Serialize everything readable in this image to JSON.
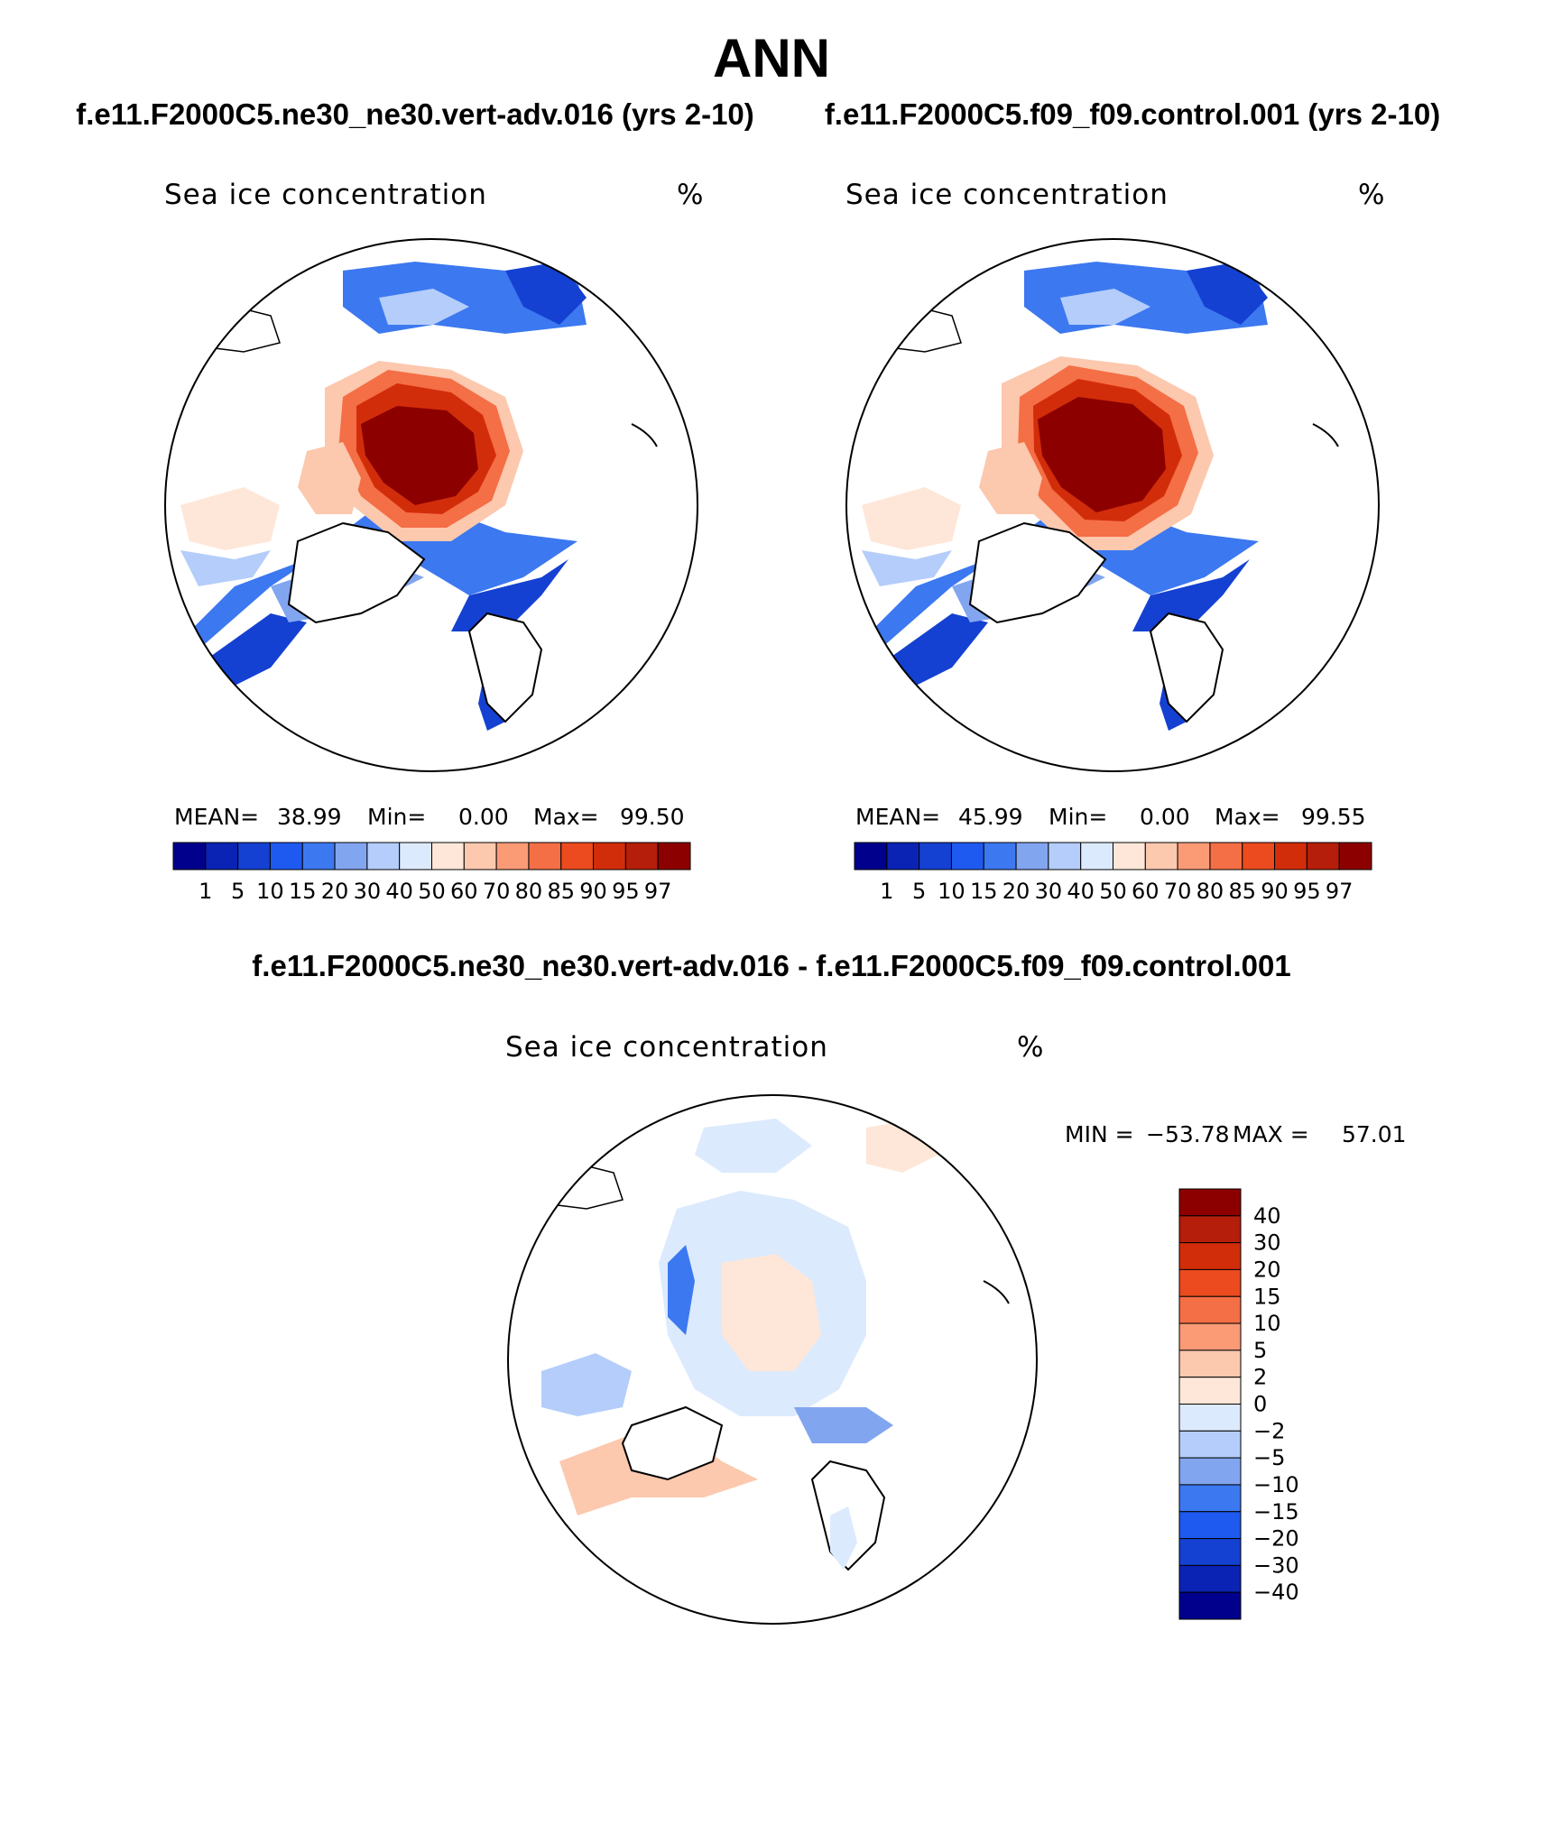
{
  "title": "ANN",
  "chart_data": [
    {
      "type": "heatmap",
      "projection": "north-polar-stereographic",
      "case_title": "f.e11.F2000C5.ne30_ne30.vert-adv.016 (yrs 2-10)",
      "variable": "Sea ice concentration",
      "units": "%",
      "stats": {
        "mean_label": "MEAN=",
        "mean": "38.99",
        "min_label": "Min=",
        "min": "0.00",
        "max_label": "Max=",
        "max": "99.50"
      },
      "levels": [
        "1",
        "5",
        "10",
        "15",
        "20",
        "30",
        "40",
        "50",
        "60",
        "70",
        "80",
        "85",
        "90",
        "95",
        "97"
      ],
      "colors": [
        "#00008c",
        "#0a23b4",
        "#1441d2",
        "#1e5af0",
        "#3c78f0",
        "#82a5f0",
        "#b4cdfa",
        "#dceafe",
        "#fee7d8",
        "#fcc8ae",
        "#fa9b76",
        "#f46e46",
        "#eb4b1e",
        "#d22d0a",
        "#b41e0a",
        "#8c0000"
      ]
    },
    {
      "type": "heatmap",
      "projection": "north-polar-stereographic",
      "case_title": "f.e11.F2000C5.f09_f09.control.001 (yrs 2-10)",
      "variable": "Sea ice concentration",
      "units": "%",
      "stats": {
        "mean_label": "MEAN=",
        "mean": "45.99",
        "min_label": "Min=",
        "min": "0.00",
        "max_label": "Max=",
        "max": "99.55"
      },
      "levels": [
        "1",
        "5",
        "10",
        "15",
        "20",
        "30",
        "40",
        "50",
        "60",
        "70",
        "80",
        "85",
        "90",
        "95",
        "97"
      ],
      "colors": [
        "#00008c",
        "#0a23b4",
        "#1441d2",
        "#1e5af0",
        "#3c78f0",
        "#82a5f0",
        "#b4cdfa",
        "#dceafe",
        "#fee7d8",
        "#fcc8ae",
        "#fa9b76",
        "#f46e46",
        "#eb4b1e",
        "#d22d0a",
        "#b41e0a",
        "#8c0000"
      ]
    },
    {
      "type": "heatmap",
      "projection": "north-polar-stereographic",
      "case_title": "f.e11.F2000C5.ne30_ne30.vert-adv.016 - f.e11.F2000C5.f09_f09.control.001",
      "variable": "Sea ice concentration",
      "units": "%",
      "stats": {
        "min_label": "MIN =",
        "min": "−53.78",
        "max_label": "MAX =",
        "max": "57.01"
      },
      "levels": [
        "40",
        "30",
        "20",
        "15",
        "10",
        "5",
        "2",
        "0",
        "−2",
        "−5",
        "−10",
        "−15",
        "−20",
        "−30",
        "−40"
      ],
      "colors": [
        "#8c0000",
        "#b41e0a",
        "#d22d0a",
        "#eb4b1e",
        "#f46e46",
        "#fa9b76",
        "#fcc8ae",
        "#fee7d8",
        "#dceafe",
        "#b4cdfa",
        "#82a5f0",
        "#3c78f0",
        "#1e5af0",
        "#1441d2",
        "#0a23b4",
        "#00008c"
      ]
    }
  ]
}
